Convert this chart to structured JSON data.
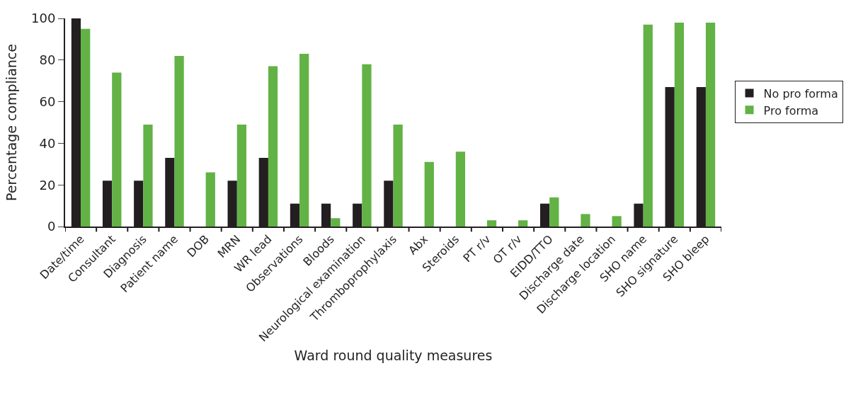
{
  "chart_data": {
    "type": "bar",
    "xlabel": "Ward round quality measures",
    "ylabel": "Percentage compliance",
    "categories": [
      "Date/time",
      "Consultant",
      "Diagnosis",
      "Patient name",
      "DOB",
      "MRN",
      "WR lead",
      "Observations",
      "Bloods",
      "Neurological examination",
      "Thromboprophylaxis",
      "Abx",
      "Steroids",
      "PT r/v",
      "OT r/v",
      "EIDD/TTO",
      "Discharge date",
      "Discharge location",
      "SHO name",
      "SHO signature",
      "SHO bleep"
    ],
    "series": [
      {
        "name": "No pro forma",
        "color": "#231f20",
        "values": [
          100,
          22,
          22,
          33,
          0,
          22,
          33,
          11,
          11,
          11,
          22,
          0,
          0,
          0,
          0,
          11,
          0,
          0,
          11,
          67,
          67
        ]
      },
      {
        "name": "Pro forma",
        "color": "#62b246",
        "values": [
          95,
          74,
          49,
          82,
          26,
          49,
          77,
          83,
          4,
          78,
          49,
          31,
          36,
          3,
          3,
          14,
          6,
          5,
          97,
          98,
          98
        ]
      }
    ],
    "ylim": [
      0,
      100
    ],
    "yticks": [
      0,
      20,
      40,
      60,
      80,
      100
    ],
    "legend": "right"
  }
}
